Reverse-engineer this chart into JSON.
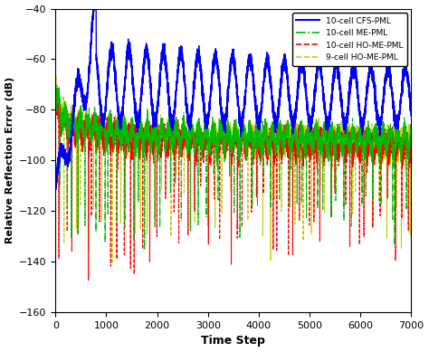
{
  "title": "",
  "xlabel": "Time Step",
  "ylabel": "Relative Reflection Error (dB)",
  "xlim": [
    0,
    7000
  ],
  "ylim": [
    -160,
    -40
  ],
  "yticks": [
    -160,
    -140,
    -120,
    -100,
    -80,
    -60,
    -40
  ],
  "xticks": [
    0,
    1000,
    2000,
    3000,
    4000,
    5000,
    6000,
    7000
  ],
  "legend": [
    {
      "label": "10-cell CFS-PML",
      "color": "#0000FF",
      "linestyle": "solid",
      "linewidth": 1.0
    },
    {
      "label": "10-cell ME-PML",
      "color": "#00BB00",
      "linestyle": "dashdot",
      "linewidth": 0.8
    },
    {
      "label": "10-cell HO-ME-PML",
      "color": "#FF0000",
      "linestyle": "dashed",
      "linewidth": 0.8
    },
    {
      "label": "9-cell HO-ME-PML",
      "color": "#CCCC00",
      "linestyle": "dashed",
      "linewidth": 0.8
    }
  ],
  "n_points": 7000,
  "bg_color": "#FFFFFF",
  "period_blue": 340,
  "period_green": 290,
  "period_red": 280,
  "period_yellow": 295
}
